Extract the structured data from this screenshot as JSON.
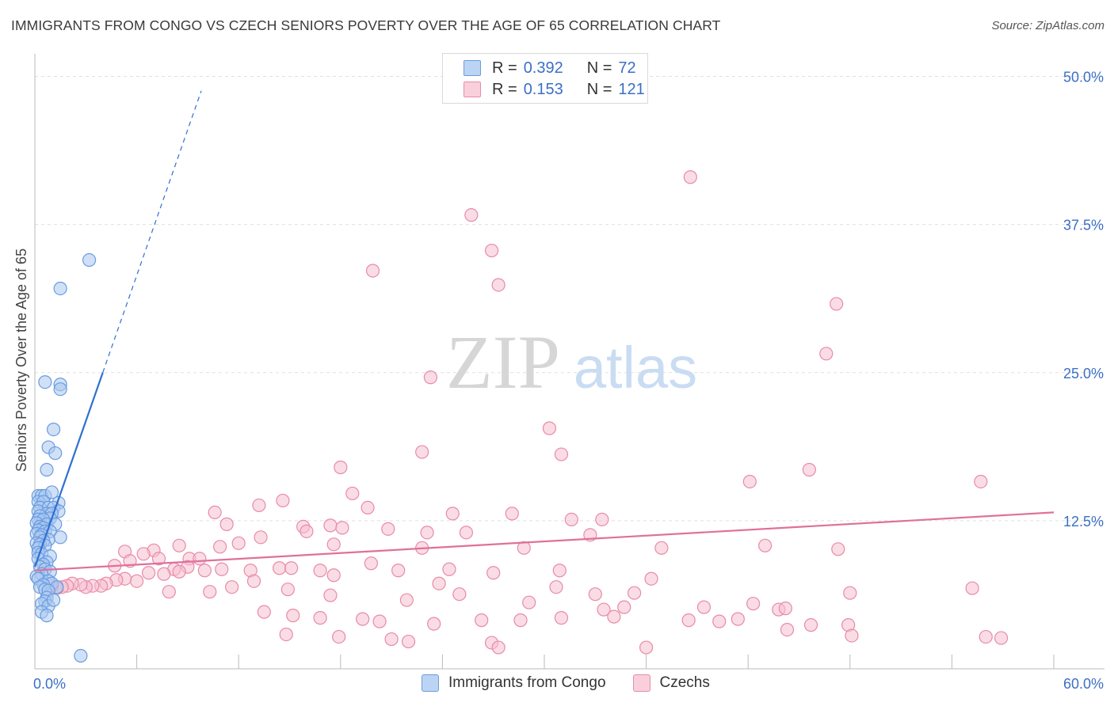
{
  "title": "IMMIGRANTS FROM CONGO VS CZECH SENIORS POVERTY OVER THE AGE OF 65 CORRELATION CHART",
  "source": "Source: ZipAtlas.com",
  "watermark": {
    "zip": "ZIP",
    "atlas": "atlas"
  },
  "legend_top": {
    "r_label": "R =",
    "n_label": "N =",
    "rows": [
      {
        "r": "0.392",
        "n": "72"
      },
      {
        "r": "0.153",
        "n": "121"
      }
    ]
  },
  "chart_data": {
    "type": "scatter",
    "title": "IMMIGRANTS FROM CONGO VS CZECH SENIORS POVERTY OVER THE AGE OF 65 CORRELATION CHART",
    "xlabel": "",
    "ylabel": "Seniors Poverty Over the Age of 65",
    "xlim": [
      0,
      60
    ],
    "ylim": [
      0,
      50
    ],
    "x_tick_labels": [
      {
        "v": 0,
        "label": "0.0%"
      },
      {
        "v": 60,
        "label": "60.0%"
      }
    ],
    "y_tick_labels": [
      {
        "v": 12.5,
        "label": "12.5%"
      },
      {
        "v": 25,
        "label": "25.0%"
      },
      {
        "v": 37.5,
        "label": "37.5%"
      },
      {
        "v": 50,
        "label": "50.0%"
      }
    ],
    "colors": {
      "congo_fill": "#a9c8f0",
      "congo_stroke": "#6a9be0",
      "congo_line": "#2f6fd1",
      "czech_fill": "#f6bfd0",
      "czech_stroke": "#e88aaa",
      "czech_line": "#e0709a",
      "axis_text": "#3b6fc6",
      "grid": "#e0e0e0"
    },
    "series": [
      {
        "name": "Immigrants from Congo",
        "R": 0.392,
        "N": 72,
        "trend": {
          "x0": 0,
          "y0": 8.6,
          "x1": 4.0,
          "y1": 25.0,
          "dashed_to_x": 9.8
        },
        "points": [
          [
            3.2,
            34.5
          ],
          [
            1.5,
            32.1
          ],
          [
            0.6,
            24.2
          ],
          [
            1.5,
            24.0
          ],
          [
            1.5,
            23.6
          ],
          [
            1.1,
            20.2
          ],
          [
            0.8,
            18.7
          ],
          [
            1.2,
            18.2
          ],
          [
            0.7,
            16.8
          ],
          [
            0.2,
            14.6
          ],
          [
            0.4,
            14.6
          ],
          [
            0.6,
            14.6
          ],
          [
            1.0,
            14.9
          ],
          [
            0.2,
            14.1
          ],
          [
            0.5,
            14.1
          ],
          [
            1.4,
            14.0
          ],
          [
            0.3,
            13.6
          ],
          [
            0.8,
            13.6
          ],
          [
            1.1,
            13.6
          ],
          [
            0.2,
            13.3
          ],
          [
            1.4,
            13.3
          ],
          [
            0.7,
            13.1
          ],
          [
            1.0,
            13.1
          ],
          [
            0.3,
            12.9
          ],
          [
            0.9,
            12.7
          ],
          [
            0.2,
            12.6
          ],
          [
            0.5,
            12.6
          ],
          [
            0.1,
            12.3
          ],
          [
            0.7,
            12.2
          ],
          [
            1.2,
            12.2
          ],
          [
            0.3,
            12.0
          ],
          [
            0.5,
            11.9
          ],
          [
            0.2,
            11.7
          ],
          [
            0.6,
            11.6
          ],
          [
            0.9,
            11.6
          ],
          [
            0.1,
            11.4
          ],
          [
            0.4,
            11.3
          ],
          [
            0.3,
            11.1
          ],
          [
            1.5,
            11.1
          ],
          [
            0.8,
            10.9
          ],
          [
            0.5,
            10.8
          ],
          [
            0.1,
            10.6
          ],
          [
            0.3,
            10.5
          ],
          [
            0.6,
            10.4
          ],
          [
            0.2,
            10.2
          ],
          [
            0.2,
            9.8
          ],
          [
            0.4,
            9.7
          ],
          [
            0.9,
            9.5
          ],
          [
            0.2,
            9.3
          ],
          [
            0.7,
            9.0
          ],
          [
            0.5,
            8.8
          ],
          [
            0.3,
            8.6
          ],
          [
            0.6,
            8.4
          ],
          [
            0.9,
            8.2
          ],
          [
            0.4,
            8.0
          ],
          [
            0.1,
            7.8
          ],
          [
            0.2,
            7.6
          ],
          [
            0.8,
            7.4
          ],
          [
            1.0,
            7.2
          ],
          [
            0.5,
            7.1
          ],
          [
            0.3,
            6.9
          ],
          [
            0.6,
            6.7
          ],
          [
            1.3,
            6.9
          ],
          [
            0.8,
            6.6
          ],
          [
            0.7,
            6.0
          ],
          [
            0.6,
            5.7
          ],
          [
            0.4,
            5.5
          ],
          [
            0.8,
            5.3
          ],
          [
            1.1,
            5.8
          ],
          [
            0.4,
            4.8
          ],
          [
            0.7,
            4.5
          ],
          [
            2.7,
            1.1
          ]
        ]
      },
      {
        "name": "Czechs",
        "R": 0.153,
        "N": 121,
        "trend": {
          "x0": 0,
          "y0": 8.3,
          "x1": 60,
          "y1": 13.2
        },
        "points": [
          [
            38.6,
            41.5
          ],
          [
            25.7,
            38.3
          ],
          [
            26.9,
            35.3
          ],
          [
            19.9,
            33.6
          ],
          [
            27.3,
            32.4
          ],
          [
            47.2,
            30.8
          ],
          [
            46.6,
            26.6
          ],
          [
            23.3,
            24.6
          ],
          [
            30.3,
            20.3
          ],
          [
            31.0,
            18.1
          ],
          [
            22.8,
            18.3
          ],
          [
            18.0,
            17.0
          ],
          [
            45.6,
            16.8
          ],
          [
            42.1,
            15.8
          ],
          [
            55.7,
            15.8
          ],
          [
            18.7,
            14.8
          ],
          [
            14.6,
            14.2
          ],
          [
            13.2,
            13.8
          ],
          [
            19.6,
            13.6
          ],
          [
            10.6,
            13.2
          ],
          [
            17.4,
            12.1
          ],
          [
            24.6,
            13.1
          ],
          [
            28.1,
            13.1
          ],
          [
            31.6,
            12.6
          ],
          [
            33.4,
            12.6
          ],
          [
            11.3,
            12.2
          ],
          [
            15.8,
            12.0
          ],
          [
            18.1,
            11.9
          ],
          [
            20.8,
            11.8
          ],
          [
            16.0,
            11.6
          ],
          [
            23.1,
            11.5
          ],
          [
            25.4,
            11.5
          ],
          [
            32.7,
            11.3
          ],
          [
            13.3,
            11.1
          ],
          [
            12.0,
            10.6
          ],
          [
            17.6,
            10.5
          ],
          [
            22.8,
            10.2
          ],
          [
            28.8,
            10.2
          ],
          [
            36.9,
            10.2
          ],
          [
            8.5,
            10.4
          ],
          [
            10.9,
            10.3
          ],
          [
            7.0,
            10.0
          ],
          [
            5.3,
            9.9
          ],
          [
            6.4,
            9.7
          ],
          [
            43.0,
            10.4
          ],
          [
            47.3,
            10.1
          ],
          [
            9.1,
            9.3
          ],
          [
            9.7,
            9.3
          ],
          [
            7.3,
            9.3
          ],
          [
            5.6,
            9.1
          ],
          [
            4.7,
            8.7
          ],
          [
            8.2,
            8.4
          ],
          [
            10.0,
            8.3
          ],
          [
            12.7,
            8.3
          ],
          [
            11.0,
            8.4
          ],
          [
            14.4,
            8.5
          ],
          [
            15.1,
            8.5
          ],
          [
            16.8,
            8.3
          ],
          [
            19.8,
            8.9
          ],
          [
            21.4,
            8.3
          ],
          [
            24.4,
            8.4
          ],
          [
            27.0,
            8.1
          ],
          [
            30.9,
            8.3
          ],
          [
            9.0,
            8.6
          ],
          [
            8.5,
            8.2
          ],
          [
            7.6,
            8.0
          ],
          [
            6.7,
            8.1
          ],
          [
            6.0,
            7.4
          ],
          [
            5.3,
            7.6
          ],
          [
            4.8,
            7.5
          ],
          [
            4.2,
            7.2
          ],
          [
            3.9,
            7.0
          ],
          [
            3.4,
            7.0
          ],
          [
            3.0,
            6.9
          ],
          [
            2.7,
            7.1
          ],
          [
            2.2,
            7.2
          ],
          [
            1.9,
            7.0
          ],
          [
            1.6,
            6.9
          ],
          [
            1.3,
            6.8
          ],
          [
            1.0,
            7.0
          ],
          [
            7.9,
            6.5
          ],
          [
            10.3,
            6.5
          ],
          [
            11.6,
            6.9
          ],
          [
            14.9,
            6.7
          ],
          [
            17.4,
            6.2
          ],
          [
            21.9,
            5.8
          ],
          [
            25.0,
            6.3
          ],
          [
            30.7,
            6.9
          ],
          [
            33.0,
            6.3
          ],
          [
            35.3,
            6.4
          ],
          [
            48.0,
            6.4
          ],
          [
            55.2,
            6.8
          ],
          [
            29.1,
            5.6
          ],
          [
            33.5,
            5.0
          ],
          [
            34.7,
            5.2
          ],
          [
            39.4,
            5.2
          ],
          [
            42.3,
            5.5
          ],
          [
            43.8,
            5.0
          ],
          [
            44.2,
            5.1
          ],
          [
            13.5,
            4.8
          ],
          [
            15.2,
            4.5
          ],
          [
            16.8,
            4.3
          ],
          [
            19.3,
            4.2
          ],
          [
            20.3,
            4.0
          ],
          [
            23.5,
            3.8
          ],
          [
            26.3,
            4.1
          ],
          [
            28.6,
            4.1
          ],
          [
            31.0,
            4.3
          ],
          [
            34.1,
            4.4
          ],
          [
            38.5,
            4.1
          ],
          [
            40.3,
            4.0
          ],
          [
            41.4,
            4.2
          ],
          [
            45.7,
            3.7
          ],
          [
            47.9,
            3.7
          ],
          [
            14.8,
            2.9
          ],
          [
            17.9,
            2.7
          ],
          [
            21.0,
            2.5
          ],
          [
            22.0,
            2.3
          ],
          [
            26.9,
            2.2
          ],
          [
            27.3,
            1.8
          ],
          [
            36.0,
            1.8
          ],
          [
            44.3,
            3.3
          ],
          [
            48.1,
            2.8
          ],
          [
            56.0,
            2.7
          ],
          [
            56.9,
            2.6
          ],
          [
            12.9,
            7.4
          ],
          [
            17.6,
            7.9
          ],
          [
            23.8,
            7.2
          ],
          [
            36.3,
            7.6
          ]
        ]
      }
    ]
  }
}
